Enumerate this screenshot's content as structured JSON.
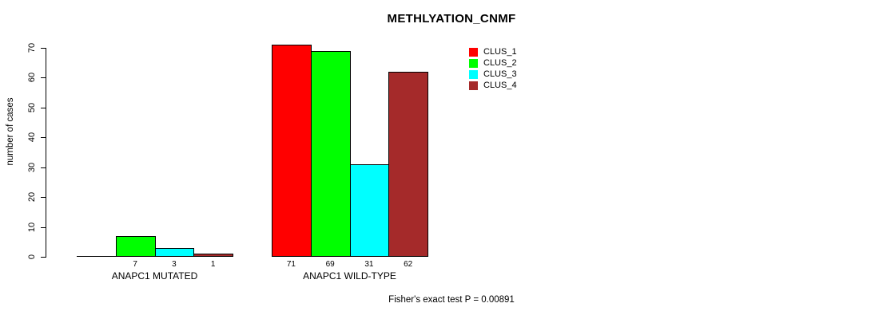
{
  "chart_data": {
    "type": "bar",
    "title": "METHLYATION_CNMF",
    "ylabel": "number of cases",
    "xlabel": "",
    "ylim": [
      0,
      70
    ],
    "yticks": [
      0,
      10,
      20,
      30,
      40,
      50,
      60,
      70
    ],
    "grid": false,
    "legend_position": "top-right",
    "series": [
      {
        "name": "CLUS_1",
        "color": "#FF0000"
      },
      {
        "name": "CLUS_2",
        "color": "#00FF00"
      },
      {
        "name": "CLUS_3",
        "color": "#00FFFF"
      },
      {
        "name": "CLUS_4",
        "color": "#A52A2A"
      }
    ],
    "categories": [
      "ANAPC1 MUTATED",
      "ANAPC1 WILD-TYPE"
    ],
    "groups": [
      {
        "label": "ANAPC1 MUTATED",
        "values": [
          0,
          7,
          3,
          1
        ],
        "value_labels": [
          "",
          "7",
          "3",
          "1"
        ]
      },
      {
        "label": "ANAPC1 WILD-TYPE",
        "values": [
          71,
          69,
          31,
          62
        ],
        "value_labels": [
          "71",
          "69",
          "31",
          "62"
        ]
      }
    ],
    "footnote": "Fisher's exact test P = 0.00891"
  }
}
